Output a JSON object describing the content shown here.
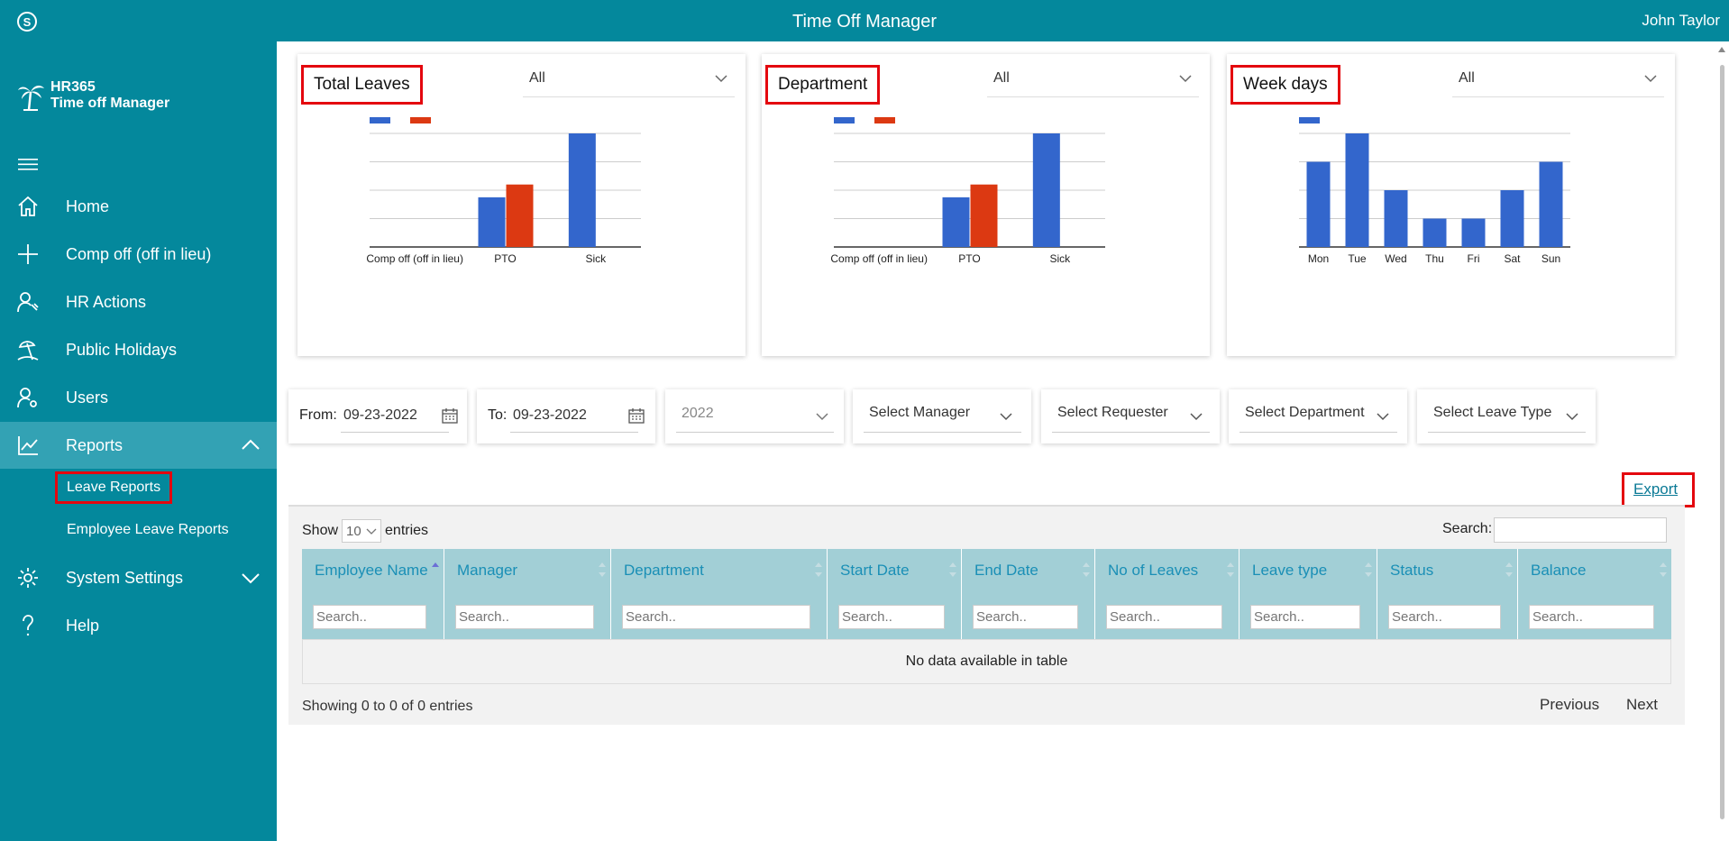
{
  "header": {
    "title": "Time Off Manager",
    "user": "John Taylor"
  },
  "logo": {
    "line1": "HR365",
    "line2": "Time off Manager"
  },
  "sidebar": {
    "items": [
      {
        "label": "Home",
        "icon": "home-icon"
      },
      {
        "label": "Comp off (off in lieu)",
        "icon": "plus-icon"
      },
      {
        "label": "HR Actions",
        "icon": "hr-actions-icon"
      },
      {
        "label": "Public Holidays",
        "icon": "beach-icon"
      },
      {
        "label": "Users",
        "icon": "users-icon"
      },
      {
        "label": "Reports",
        "icon": "chart-line-icon"
      },
      {
        "label": "System Settings",
        "icon": "gear-icon"
      },
      {
        "label": "Help",
        "icon": "question-icon"
      }
    ],
    "subitems": [
      {
        "label": "Leave Reports"
      },
      {
        "label": "Employee Leave Reports"
      }
    ]
  },
  "cards": [
    {
      "title": "Total Leaves",
      "filter": "All"
    },
    {
      "title": "Department",
      "filter": "All"
    },
    {
      "title": "Week days",
      "filter": "All"
    }
  ],
  "colors": {
    "primary": "#04889c",
    "blue": "#3366cc",
    "red": "#dc3912",
    "highlight": "#e4070e"
  },
  "chart_data": [
    {
      "type": "bar",
      "title": "Total Leaves",
      "categories": [
        "Comp off (off in lieu)",
        "PTO",
        "Sick"
      ],
      "series": [
        {
          "name": "",
          "color": "#3366cc",
          "values": [
            0,
            1.75,
            4
          ]
        },
        {
          "name": "",
          "color": "#dc3912",
          "values": [
            0,
            2.2,
            0
          ]
        }
      ],
      "ylim": [
        0,
        4
      ],
      "grid": true
    },
    {
      "type": "bar",
      "title": "Department",
      "categories": [
        "Comp off (off in lieu)",
        "PTO",
        "Sick"
      ],
      "series": [
        {
          "name": "",
          "color": "#3366cc",
          "values": [
            0,
            1.75,
            4
          ]
        },
        {
          "name": "",
          "color": "#dc3912",
          "values": [
            0,
            2.2,
            0
          ]
        }
      ],
      "ylim": [
        0,
        4
      ],
      "grid": true
    },
    {
      "type": "bar",
      "title": "Week days",
      "categories": [
        "Mon",
        "Tue",
        "Wed",
        "Thu",
        "Fri",
        "Sat",
        "Sun"
      ],
      "series": [
        {
          "name": "",
          "color": "#3366cc",
          "values": [
            3,
            4,
            2,
            1,
            1,
            2,
            3
          ]
        }
      ],
      "ylim": [
        0,
        4
      ],
      "grid": true
    }
  ],
  "filters": {
    "from_label": "From:",
    "from_value": "09-23-2022",
    "to_label": "To:",
    "to_value": "09-23-2022",
    "year": "2022",
    "manager": "Select Manager",
    "requester": "Select Requester",
    "department": "Select Department",
    "leave_type": "Select Leave Type"
  },
  "export_label": "Export",
  "table": {
    "show_label": "Show",
    "page_length": "10",
    "entries_label": "entries",
    "search_label": "Search:",
    "columns": [
      "Employee Name",
      "Manager",
      "Department",
      "Start Date",
      "End Date",
      "No of Leaves",
      "Leave type",
      "Status",
      "Balance"
    ],
    "column_search_placeholder": "Search..",
    "empty_message": "No data available in table",
    "info": "Showing 0 to 0 of 0 entries",
    "previous": "Previous",
    "next": "Next"
  }
}
